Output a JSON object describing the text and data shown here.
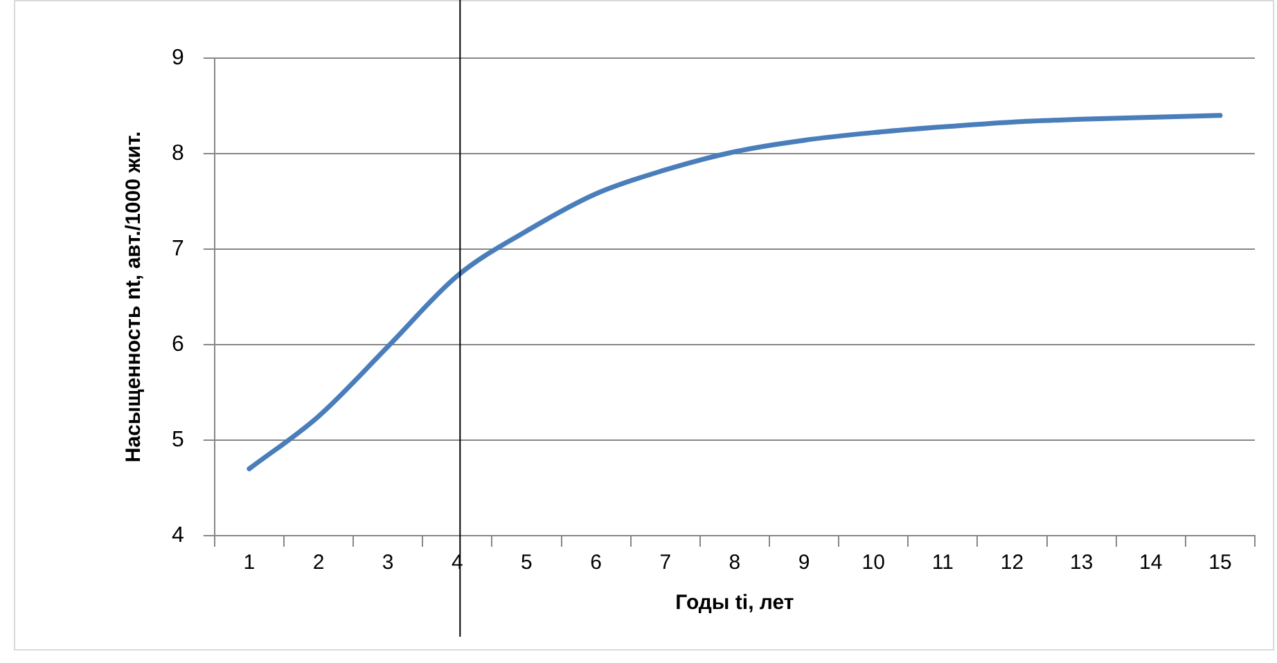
{
  "chart_data": {
    "type": "line",
    "xlabel": "Годы ti, лет",
    "ylabel": "Насыщенность nt, авт./1000 жит.",
    "x": [
      1,
      2,
      3,
      4,
      5,
      6,
      7,
      8,
      9,
      10,
      11,
      12,
      13,
      14,
      15
    ],
    "series": [
      {
        "color": "#4a7ebb",
        "values": [
          4.7,
          5.25,
          5.98,
          6.72,
          7.19,
          7.58,
          7.83,
          8.02,
          8.14,
          8.22,
          8.28,
          8.33,
          8.36,
          8.38,
          8.4
        ]
      }
    ],
    "xlim": [
      0.5,
      15.5
    ],
    "xticks": [
      {
        "value": 0.5,
        "label": null
      },
      1,
      {
        "value": 1.5,
        "label": null
      },
      2,
      {
        "value": 2.5,
        "label": null
      },
      3,
      {
        "value": 3.5,
        "label": null
      },
      4,
      {
        "value": 4.5,
        "label": null
      },
      5,
      {
        "value": 5.5,
        "label": null
      },
      6,
      {
        "value": 6.5,
        "label": null
      },
      7,
      {
        "value": 7.5,
        "label": null
      },
      8,
      {
        "value": 8.5,
        "label": null
      },
      9,
      {
        "value": 9.5,
        "label": null
      },
      10,
      {
        "value": 10.5,
        "label": null
      },
      11,
      {
        "value": 11.5,
        "label": null
      },
      12,
      {
        "value": 12.5,
        "label": null
      },
      13,
      {
        "value": 13.5,
        "label": null
      },
      14,
      {
        "value": 14.5,
        "label": null
      },
      15,
      {
        "value": 15.5,
        "label": null
      }
    ],
    "ylim": [
      4,
      9
    ],
    "yticks": [
      4,
      5,
      6,
      7,
      8,
      9
    ],
    "grid": "y",
    "legend": false,
    "marker": "none",
    "line_style": "solid",
    "ref_lines": [
      {
        "axis": "x",
        "value": 4,
        "color": "#000000"
      }
    ]
  }
}
